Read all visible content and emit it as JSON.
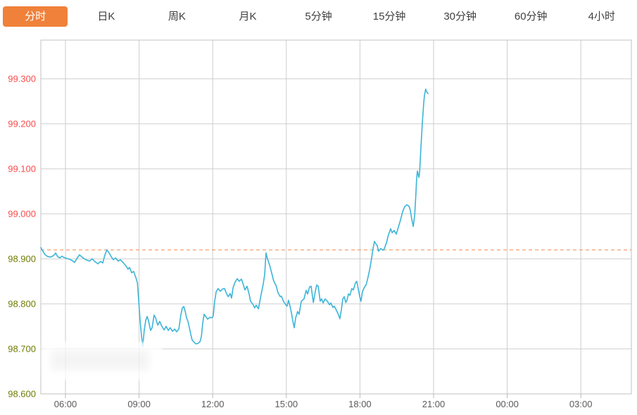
{
  "tab_bar": {
    "tabs": [
      {
        "label": "分时",
        "active": true
      },
      {
        "label": "日K",
        "active": false
      },
      {
        "label": "周K",
        "active": false
      },
      {
        "label": "月K",
        "active": false
      },
      {
        "label": "5分钟",
        "active": false
      },
      {
        "label": "15分钟",
        "active": false
      },
      {
        "label": "30分钟",
        "active": false
      },
      {
        "label": "60分钟",
        "active": false
      },
      {
        "label": "4小时",
        "active": false
      }
    ]
  },
  "colors": {
    "active_tab_bg": "#f0813a",
    "active_tab_text": "#ffffff",
    "tab_text": "#3f3f3f",
    "price_line": "#3cb4d8",
    "reference_line": "#f08a50",
    "grid": "#cdcdcd",
    "border": "#c0c0c0",
    "tick": "#b9b9b9",
    "x_axis_text": "#5a5a5a",
    "up_text": "#fb4b4b",
    "down_text": "#6e7b00"
  },
  "chart_data": {
    "type": "line",
    "x_axis": {
      "unit": "hour-of-day",
      "start_hour": 5.0,
      "end_hour": 29.06,
      "ticks": [
        {
          "hour": 6,
          "label": "06:00"
        },
        {
          "hour": 9,
          "label": "09:00"
        },
        {
          "hour": 12,
          "label": "12:00"
        },
        {
          "hour": 15,
          "label": "15:00"
        },
        {
          "hour": 18,
          "label": "18:00"
        },
        {
          "hour": 21,
          "label": "21:00"
        },
        {
          "hour": 24,
          "label": "00:00"
        },
        {
          "hour": 27,
          "label": "03:00"
        }
      ]
    },
    "y_axis": {
      "min": 98.6,
      "max": 99.386,
      "ticks": [
        {
          "value": 99.3,
          "label": "99.300",
          "direction": "up"
        },
        {
          "value": 99.2,
          "label": "99.200",
          "direction": "up"
        },
        {
          "value": 99.1,
          "label": "99.100",
          "direction": "up"
        },
        {
          "value": 99.0,
          "label": "99.000",
          "direction": "up"
        },
        {
          "value": 98.9,
          "label": "98.900",
          "direction": "down"
        },
        {
          "value": 98.8,
          "label": "98.800",
          "direction": "down"
        },
        {
          "value": 98.7,
          "label": "98.700",
          "direction": "down"
        },
        {
          "value": 98.6,
          "label": "98.600",
          "direction": "down"
        }
      ]
    },
    "reference_line": {
      "value": 98.92,
      "style": "dashed"
    },
    "series": [
      {
        "name": "price",
        "points": [
          [
            5.0,
            98.925
          ],
          [
            5.09,
            98.916
          ],
          [
            5.17,
            98.909
          ],
          [
            5.28,
            98.905
          ],
          [
            5.4,
            98.904
          ],
          [
            5.51,
            98.907
          ],
          [
            5.6,
            98.913
          ],
          [
            5.68,
            98.905
          ],
          [
            5.77,
            98.902
          ],
          [
            5.86,
            98.906
          ],
          [
            5.94,
            98.903
          ],
          [
            6.06,
            98.901
          ],
          [
            6.17,
            98.899
          ],
          [
            6.29,
            98.896
          ],
          [
            6.37,
            98.892
          ],
          [
            6.46,
            98.9
          ],
          [
            6.57,
            98.909
          ],
          [
            6.69,
            98.903
          ],
          [
            6.83,
            98.898
          ],
          [
            6.98,
            98.895
          ],
          [
            7.09,
            98.9
          ],
          [
            7.2,
            98.894
          ],
          [
            7.32,
            98.889
          ],
          [
            7.43,
            98.894
          ],
          [
            7.52,
            98.891
          ],
          [
            7.61,
            98.909
          ],
          [
            7.69,
            98.92
          ],
          [
            7.78,
            98.913
          ],
          [
            7.86,
            98.905
          ],
          [
            7.95,
            98.898
          ],
          [
            8.04,
            98.902
          ],
          [
            8.15,
            98.895
          ],
          [
            8.24,
            98.898
          ],
          [
            8.35,
            98.892
          ],
          [
            8.47,
            98.884
          ],
          [
            8.55,
            98.877
          ],
          [
            8.61,
            98.881
          ],
          [
            8.7,
            98.869
          ],
          [
            8.78,
            98.872
          ],
          [
            8.87,
            98.858
          ],
          [
            8.93,
            98.847
          ],
          [
            8.98,
            98.811
          ],
          [
            9.04,
            98.764
          ],
          [
            9.1,
            98.728
          ],
          [
            9.13,
            98.714
          ],
          [
            9.15,
            98.706
          ],
          [
            9.21,
            98.741
          ],
          [
            9.27,
            98.763
          ],
          [
            9.33,
            98.772
          ],
          [
            9.38,
            98.763
          ],
          [
            9.47,
            98.741
          ],
          [
            9.53,
            98.747
          ],
          [
            9.61,
            98.775
          ],
          [
            9.67,
            98.769
          ],
          [
            9.76,
            98.753
          ],
          [
            9.84,
            98.761
          ],
          [
            9.93,
            98.75
          ],
          [
            10.02,
            98.742
          ],
          [
            10.1,
            98.75
          ],
          [
            10.19,
            98.741
          ],
          [
            10.27,
            98.747
          ],
          [
            10.36,
            98.739
          ],
          [
            10.45,
            98.744
          ],
          [
            10.53,
            98.738
          ],
          [
            10.62,
            98.744
          ],
          [
            10.7,
            98.775
          ],
          [
            10.76,
            98.791
          ],
          [
            10.82,
            98.794
          ],
          [
            10.88,
            98.783
          ],
          [
            10.93,
            98.77
          ],
          [
            10.99,
            98.761
          ],
          [
            11.05,
            98.747
          ],
          [
            11.11,
            98.731
          ],
          [
            11.16,
            98.72
          ],
          [
            11.25,
            98.714
          ],
          [
            11.33,
            98.711
          ],
          [
            11.42,
            98.713
          ],
          [
            11.48,
            98.716
          ],
          [
            11.54,
            98.728
          ],
          [
            11.59,
            98.756
          ],
          [
            11.65,
            98.777
          ],
          [
            11.74,
            98.77
          ],
          [
            11.79,
            98.766
          ],
          [
            11.88,
            98.77
          ],
          [
            11.97,
            98.769
          ],
          [
            12.02,
            98.773
          ],
          [
            12.08,
            98.806
          ],
          [
            12.14,
            98.827
          ],
          [
            12.22,
            98.834
          ],
          [
            12.31,
            98.828
          ],
          [
            12.4,
            98.833
          ],
          [
            12.48,
            98.834
          ],
          [
            12.57,
            98.822
          ],
          [
            12.63,
            98.816
          ],
          [
            12.71,
            98.823
          ],
          [
            12.77,
            98.813
          ],
          [
            12.83,
            98.836
          ],
          [
            12.91,
            98.848
          ],
          [
            13.0,
            98.856
          ],
          [
            13.08,
            98.85
          ],
          [
            13.17,
            98.855
          ],
          [
            13.26,
            98.841
          ],
          [
            13.31,
            98.831
          ],
          [
            13.4,
            98.839
          ],
          [
            13.49,
            98.82
          ],
          [
            13.54,
            98.806
          ],
          [
            13.63,
            98.8
          ],
          [
            13.71,
            98.791
          ],
          [
            13.77,
            98.797
          ],
          [
            13.86,
            98.789
          ],
          [
            13.92,
            98.805
          ],
          [
            13.97,
            98.82
          ],
          [
            14.06,
            98.844
          ],
          [
            14.12,
            98.866
          ],
          [
            14.17,
            98.913
          ],
          [
            14.23,
            98.9
          ],
          [
            14.32,
            98.886
          ],
          [
            14.4,
            98.869
          ],
          [
            14.49,
            98.85
          ],
          [
            14.58,
            98.841
          ],
          [
            14.66,
            98.825
          ],
          [
            14.75,
            98.816
          ],
          [
            14.8,
            98.817
          ],
          [
            14.89,
            98.805
          ],
          [
            14.98,
            98.798
          ],
          [
            15.03,
            98.795
          ],
          [
            15.09,
            98.808
          ],
          [
            15.15,
            98.795
          ],
          [
            15.21,
            98.78
          ],
          [
            15.26,
            98.763
          ],
          [
            15.32,
            98.747
          ],
          [
            15.38,
            98.769
          ],
          [
            15.46,
            98.783
          ],
          [
            15.52,
            98.777
          ],
          [
            15.61,
            98.806
          ],
          [
            15.72,
            98.811
          ],
          [
            15.81,
            98.83
          ],
          [
            15.87,
            98.822
          ],
          [
            15.95,
            98.838
          ],
          [
            16.01,
            98.839
          ],
          [
            16.1,
            98.803
          ],
          [
            16.18,
            98.827
          ],
          [
            16.24,
            98.842
          ],
          [
            16.3,
            98.839
          ],
          [
            16.38,
            98.806
          ],
          [
            16.44,
            98.811
          ],
          [
            16.5,
            98.802
          ],
          [
            16.58,
            98.811
          ],
          [
            16.67,
            98.806
          ],
          [
            16.76,
            98.798
          ],
          [
            16.81,
            98.802
          ],
          [
            16.9,
            98.792
          ],
          [
            16.95,
            98.795
          ],
          [
            17.04,
            98.786
          ],
          [
            17.13,
            98.775
          ],
          [
            17.18,
            98.767
          ],
          [
            17.24,
            98.786
          ],
          [
            17.3,
            98.811
          ],
          [
            17.36,
            98.816
          ],
          [
            17.42,
            98.803
          ],
          [
            17.47,
            98.808
          ],
          [
            17.53,
            98.822
          ],
          [
            17.59,
            98.819
          ],
          [
            17.67,
            98.834
          ],
          [
            17.73,
            98.831
          ],
          [
            17.82,
            98.847
          ],
          [
            17.87,
            98.85
          ],
          [
            17.93,
            98.833
          ],
          [
            17.99,
            98.816
          ],
          [
            18.04,
            98.806
          ],
          [
            18.1,
            98.827
          ],
          [
            18.19,
            98.838
          ],
          [
            18.25,
            98.842
          ],
          [
            18.3,
            98.853
          ],
          [
            18.36,
            98.867
          ],
          [
            18.42,
            98.883
          ],
          [
            18.47,
            98.9
          ],
          [
            18.53,
            98.922
          ],
          [
            18.59,
            98.939
          ],
          [
            18.65,
            98.933
          ],
          [
            18.7,
            98.93
          ],
          [
            18.76,
            98.917
          ],
          [
            18.85,
            98.923
          ],
          [
            18.93,
            98.919
          ],
          [
            18.99,
            98.922
          ],
          [
            19.08,
            98.936
          ],
          [
            19.16,
            98.953
          ],
          [
            19.25,
            98.967
          ],
          [
            19.31,
            98.958
          ],
          [
            19.39,
            98.963
          ],
          [
            19.48,
            98.955
          ],
          [
            19.56,
            98.969
          ],
          [
            19.65,
            98.986
          ],
          [
            19.74,
            99.005
          ],
          [
            19.82,
            99.016
          ],
          [
            19.91,
            99.02
          ],
          [
            20.0,
            99.017
          ],
          [
            20.05,
            99.008
          ],
          [
            20.11,
            98.988
          ],
          [
            20.17,
            98.972
          ],
          [
            20.23,
            98.998
          ],
          [
            20.28,
            99.045
          ],
          [
            20.31,
            99.077
          ],
          [
            20.34,
            99.095
          ],
          [
            20.4,
            99.081
          ],
          [
            20.43,
            99.091
          ],
          [
            20.48,
            99.144
          ],
          [
            20.54,
            99.202
          ],
          [
            20.6,
            99.248
          ],
          [
            20.63,
            99.264
          ],
          [
            20.68,
            99.277
          ],
          [
            20.71,
            99.272
          ],
          [
            20.77,
            99.267
          ]
        ]
      }
    ]
  }
}
